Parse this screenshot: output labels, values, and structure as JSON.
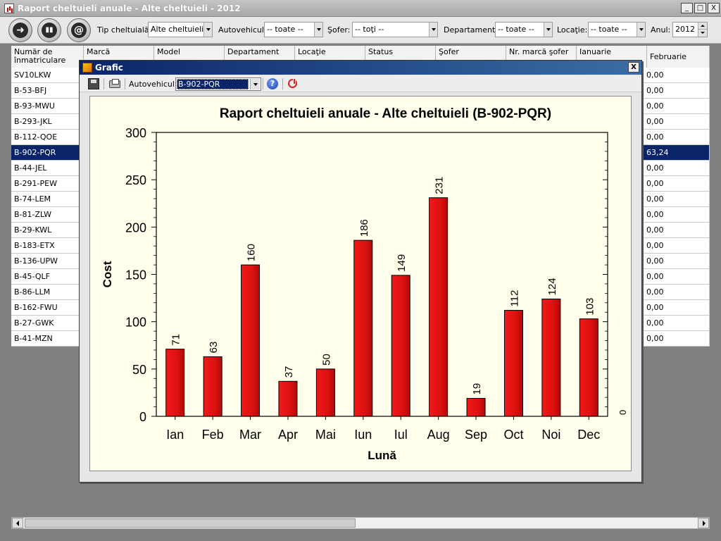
{
  "window": {
    "title": "Raport cheltuieli anuale - Alte cheltuieli - 2012",
    "minimize_glyph": "_",
    "maximize_glyph": "□",
    "close_glyph": "X"
  },
  "toolbar": {
    "buttons": [
      {
        "icon": "exit-icon",
        "glyph": "➜"
      },
      {
        "icon": "chart-icon",
        "glyph": "▮▮"
      },
      {
        "icon": "email-icon",
        "glyph": "@"
      }
    ],
    "filters": {
      "tip_label": "Tip cheltuială:",
      "tip_value": "Alte cheltuieli",
      "auto_label": "Autovehicul:",
      "auto_value": "-- toate --",
      "sofer_label": "Şofer:",
      "sofer_value": "-- toţi --",
      "dept_label": "Departament:",
      "dept_value": "-- toate --",
      "loc_label": "Locaţie:",
      "loc_value": "-- toate --",
      "an_label": "Anul:",
      "an_value": "2012"
    }
  },
  "grid": {
    "columns": [
      "Număr de înmatriculare",
      "Marcă",
      "Model",
      "Departament",
      "Locaţie",
      "Status",
      "Şofer",
      "Nr. marcă şofer",
      "Ianuarie",
      "Februarie"
    ],
    "selected_row": 5,
    "rows": [
      {
        "plate": "SV10LKW",
        "feb": "0,00"
      },
      {
        "plate": "B-53-BFJ",
        "feb": "0,00"
      },
      {
        "plate": "B-93-MWU",
        "feb": "0,00"
      },
      {
        "plate": "B-293-JKL",
        "feb": "0,00"
      },
      {
        "plate": "B-112-QOE",
        "feb": "0,00"
      },
      {
        "plate": "B-902-PQR",
        "feb": "63,24"
      },
      {
        "plate": "B-44-JEL",
        "feb": "0,00"
      },
      {
        "plate": "B-291-PEW",
        "feb": "0,00"
      },
      {
        "plate": "B-74-LEM",
        "feb": "0,00"
      },
      {
        "plate": "B-81-ZLW",
        "feb": "0,00"
      },
      {
        "plate": "B-29-KWL",
        "feb": "0,00"
      },
      {
        "plate": "B-183-ETX",
        "feb": "0,00"
      },
      {
        "plate": "B-136-UPW",
        "feb": "0,00"
      },
      {
        "plate": "B-45-QLF",
        "feb": "0,00"
      },
      {
        "plate": "B-86-LLM",
        "feb": "0,00"
      },
      {
        "plate": "B-162-FWU",
        "feb": "0,00"
      },
      {
        "plate": "B-27-GWK",
        "feb": "0,00"
      },
      {
        "plate": "B-41-MZN",
        "feb": "0,00"
      }
    ]
  },
  "dialog": {
    "title": "Grafic",
    "close_glyph": "X",
    "auto_label": "Autovehicul:",
    "auto_value": "B-902-PQR",
    "help_glyph": "?"
  },
  "chart_data": {
    "type": "bar",
    "title": "Raport cheltuieli anuale - Alte cheltuieli (B-902-PQR)",
    "xlabel": "Lună",
    "ylabel": "Cost",
    "categories": [
      "Ian",
      "Feb",
      "Mar",
      "Apr",
      "Mai",
      "Iun",
      "Iul",
      "Aug",
      "Sep",
      "Oct",
      "Noi",
      "Dec"
    ],
    "values": [
      71,
      63,
      160,
      37,
      50,
      186,
      149,
      231,
      19,
      112,
      124,
      103
    ],
    "ylim": [
      0,
      300
    ],
    "yticks": [
      0,
      50,
      100,
      150,
      200,
      250,
      300
    ],
    "right_axis_label": "0",
    "bar_color": "#dd1111",
    "grid": false,
    "legend": "none"
  }
}
